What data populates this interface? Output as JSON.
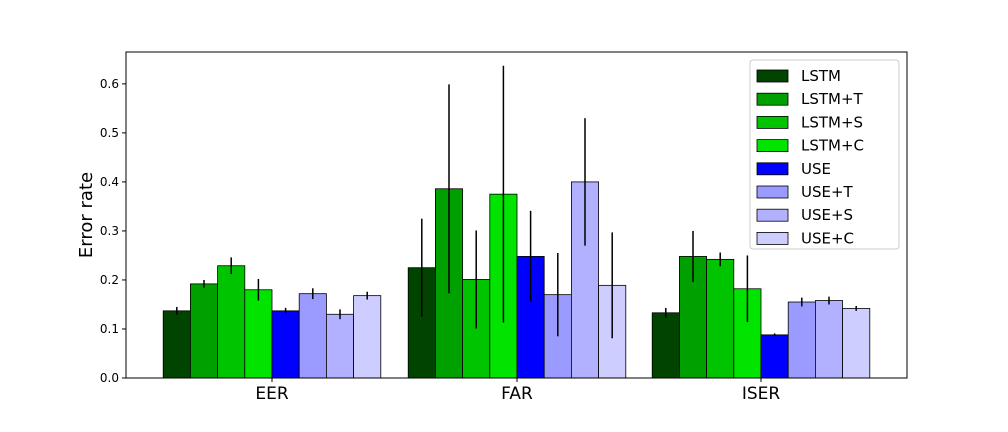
{
  "chart_data": {
    "type": "bar",
    "ylabel": "Error rate",
    "xlabel": "",
    "ylim": [
      0,
      0.665
    ],
    "yticks": [
      "0.0",
      "0.1",
      "0.2",
      "0.3",
      "0.4",
      "0.5",
      "0.6"
    ],
    "categories": [
      "EER",
      "FAR",
      "ISER"
    ],
    "legend_position": "top-right",
    "grid": false,
    "series": [
      {
        "name": "LSTM",
        "color": "#004400",
        "values": [
          0.137,
          0.225,
          0.133
        ],
        "errors": [
          0.008,
          0.1,
          0.01
        ]
      },
      {
        "name": "LSTM+T",
        "color": "#00a000",
        "values": [
          0.192,
          0.386,
          0.248
        ],
        "errors": [
          0.008,
          0.213,
          0.052
        ]
      },
      {
        "name": "LSTM+S",
        "color": "#00c400",
        "values": [
          0.229,
          0.201,
          0.242
        ],
        "errors": [
          0.017,
          0.1,
          0.014
        ]
      },
      {
        "name": "LSTM+C",
        "color": "#00e400",
        "values": [
          0.18,
          0.375,
          0.182
        ],
        "errors": [
          0.022,
          0.262,
          0.068
        ]
      },
      {
        "name": "USE",
        "color": "#0000ff",
        "values": [
          0.137,
          0.248,
          0.088
        ],
        "errors": [
          0.006,
          0.093,
          0.003
        ]
      },
      {
        "name": "USE+T",
        "color": "#9b9bff",
        "values": [
          0.172,
          0.17,
          0.155
        ],
        "errors": [
          0.011,
          0.085,
          0.009
        ]
      },
      {
        "name": "USE+S",
        "color": "#b1b1ff",
        "values": [
          0.13,
          0.4,
          0.158
        ],
        "errors": [
          0.01,
          0.13,
          0.008
        ]
      },
      {
        "name": "USE+C",
        "color": "#cdcdff",
        "values": [
          0.168,
          0.189,
          0.142
        ],
        "errors": [
          0.008,
          0.108,
          0.005
        ]
      }
    ]
  }
}
